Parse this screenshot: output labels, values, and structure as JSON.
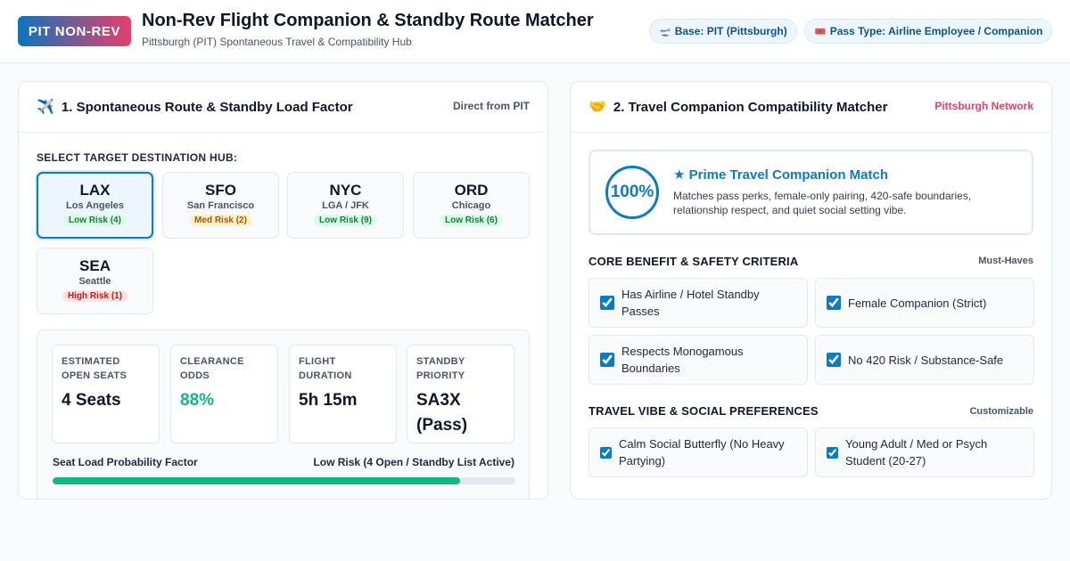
{
  "header": {
    "logo": "PIT NON-REV",
    "title": "Non-Rev Flight Companion & Standby Route Matcher",
    "subtitle": "Pittsburgh (PIT) Spontaneous Travel & Compatibility Hub",
    "base_badge": "Base: PIT (Pittsburgh)",
    "pass_badge": "Pass Type: Airline Employee / Companion"
  },
  "route_panel": {
    "title": "1. Spontaneous Route & Standby Load Factor",
    "tag": "Direct from PIT",
    "hub_label": "SELECT TARGET DESTINATION HUB:",
    "hubs": [
      {
        "code": "LAX",
        "city": "Los Angeles",
        "risk": "Low Risk (4)"
      },
      {
        "code": "SFO",
        "city": "San Francisco",
        "risk": "Med Risk (2)"
      },
      {
        "code": "NYC",
        "city": "LGA / JFK",
        "risk": "Low Risk (9)"
      },
      {
        "code": "ORD",
        "city": "Chicago",
        "risk": "Low Risk (6)"
      },
      {
        "code": "SEA",
        "city": "Seattle",
        "risk": "High Risk (1)"
      }
    ],
    "stats": [
      {
        "label": "ESTIMATED OPEN SEATS",
        "value": "4 Seats"
      },
      {
        "label": "CLEARANCE ODDS",
        "value": "88%"
      },
      {
        "label": "FLIGHT DURATION",
        "value": "5h 15m"
      },
      {
        "label": "STANDBY PRIORITY",
        "value": "SA3X (Pass)"
      }
    ],
    "load_label": "Seat Load Probability Factor",
    "load_status": "Low Risk (4 Open / Standby List Active)",
    "load_fraction": 0.88
  },
  "companion_panel": {
    "title": "2. Travel Companion Compatibility Matcher",
    "tag": "Pittsburgh Network",
    "match": {
      "score": "100%",
      "title": "★ Prime Travel Companion Match",
      "description": "Matches pass perks, female-only pairing, 420-safe boundaries, relationship respect, and quiet social setting vibe."
    },
    "criteria_label": "CORE BENEFIT & SAFETY CRITERIA",
    "criteria_side": "Must-Haves",
    "criteria": [
      {
        "label": "Has Airline / Hotel Standby Passes",
        "checked": true
      },
      {
        "label": "Female Companion (Strict)",
        "checked": true
      },
      {
        "label": "Respects Monogamous Boundaries",
        "checked": true
      },
      {
        "label": "No 420 Risk / Substance-Safe",
        "checked": true
      }
    ],
    "vibe_label": "TRAVEL VIBE & SOCIAL PREFERENCES",
    "vibe_side": "Customizable",
    "vibes": [
      {
        "label": "Calm Social Butterfly (No Heavy Partying)",
        "checked": true
      },
      {
        "label": "Young Adult / Med or Psych Student (20-27)",
        "checked": true
      }
    ]
  },
  "colors": {
    "brand_blue": "#0b74bd",
    "brand_pink": "#e73f6a",
    "success_green": "#10b981"
  }
}
